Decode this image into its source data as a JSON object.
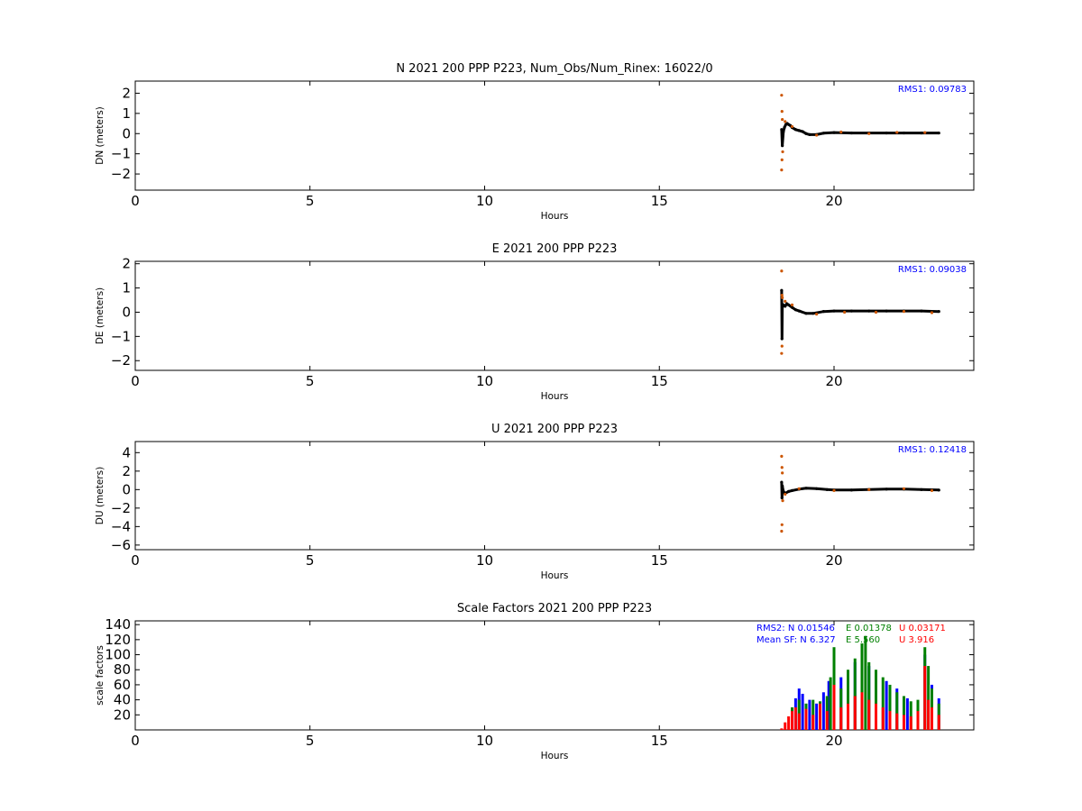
{
  "chart_data": [
    {
      "type": "scatter",
      "title": "N 2021 200 PPP  P223, Num_Obs/Num_Rinex: 16022/0",
      "xlabel": "Hours",
      "ylabel": "DN (meters)",
      "xlim": [
        0,
        24
      ],
      "ylim": [
        -2.8,
        2.6
      ],
      "xticks": [
        0,
        5,
        10,
        15,
        20
      ],
      "yticks": [
        -2,
        -1,
        0,
        1,
        2
      ],
      "annotation": "RMS1:  0.09783",
      "annotation_color": "#0000ff",
      "series": [
        {
          "color": "#000000",
          "x": [
            18.5,
            18.52,
            18.55,
            18.58,
            18.62,
            18.66,
            18.7,
            18.75,
            18.8,
            18.9,
            19.0,
            19.1,
            19.2,
            19.3,
            19.5,
            19.7,
            20.0,
            20.5,
            21.0,
            21.5,
            22.0,
            22.5,
            23.0
          ],
          "y": [
            0.2,
            -0.6,
            0.1,
            0.3,
            0.45,
            0.5,
            0.45,
            0.4,
            0.3,
            0.2,
            0.15,
            0.1,
            0.0,
            -0.05,
            -0.05,
            0.02,
            0.05,
            0.03,
            0.03,
            0.03,
            0.03,
            0.03,
            0.03
          ]
        },
        {
          "color": "#cc5500",
          "x": [
            18.5,
            18.5,
            18.51,
            18.51,
            18.52,
            18.53,
            18.6,
            18.8,
            19.5,
            20.2,
            21.0,
            21.8,
            22.6
          ],
          "y": [
            1.9,
            -1.8,
            1.1,
            -1.3,
            0.7,
            -0.9,
            0.6,
            0.35,
            -0.08,
            0.08,
            0.0,
            0.06,
            0.05
          ]
        }
      ]
    },
    {
      "type": "scatter",
      "title": "E 2021 200 PPP  P223",
      "xlabel": "Hours",
      "ylabel": "DE (meters)",
      "xlim": [
        0,
        24
      ],
      "ylim": [
        -2.4,
        2.1
      ],
      "xticks": [
        0,
        5,
        10,
        15,
        20
      ],
      "yticks": [
        -2,
        -1,
        0,
        1,
        2
      ],
      "annotation": "RMS1:  0.09038",
      "annotation_color": "#0000ff",
      "series": [
        {
          "color": "#000000",
          "x": [
            18.5,
            18.51,
            18.52,
            18.55,
            18.6,
            18.65,
            18.7,
            18.8,
            18.9,
            19.0,
            19.2,
            19.4,
            19.7,
            20.0,
            20.5,
            21.0,
            21.5,
            22.0,
            22.5,
            23.0
          ],
          "y": [
            0.9,
            -1.1,
            0.2,
            0.3,
            0.25,
            0.35,
            0.3,
            0.2,
            0.1,
            0.05,
            -0.05,
            -0.05,
            0.03,
            0.05,
            0.05,
            0.05,
            0.05,
            0.05,
            0.05,
            0.03
          ]
        },
        {
          "color": "#cc5500",
          "x": [
            18.5,
            18.5,
            18.51,
            18.51,
            18.52,
            18.6,
            18.8,
            19.5,
            20.3,
            21.2,
            22.0,
            22.8
          ],
          "y": [
            1.7,
            -1.7,
            0.7,
            -1.4,
            0.6,
            0.45,
            0.3,
            -0.08,
            0.0,
            0.0,
            0.03,
            -0.02
          ]
        }
      ]
    },
    {
      "type": "scatter",
      "title": "U 2021 200 PPP  P223",
      "xlabel": "Hours",
      "ylabel": "DU (meters)",
      "xlim": [
        0,
        24
      ],
      "ylim": [
        -6.5,
        5.2
      ],
      "xticks": [
        0,
        5,
        10,
        15,
        20
      ],
      "yticks": [
        -6,
        -4,
        -2,
        0,
        2,
        4
      ],
      "annotation": "RMS1:  0.12418",
      "annotation_color": "#0000ff",
      "series": [
        {
          "color": "#000000",
          "x": [
            18.5,
            18.51,
            18.52,
            18.55,
            18.6,
            18.7,
            18.8,
            19.0,
            19.2,
            19.5,
            19.8,
            20.0,
            20.5,
            21.0,
            21.5,
            22.0,
            22.5,
            23.0
          ],
          "y": [
            0.8,
            -0.9,
            0.4,
            -0.2,
            -0.4,
            -0.2,
            -0.1,
            0.05,
            0.15,
            0.1,
            0.0,
            -0.05,
            -0.05,
            0.0,
            0.05,
            0.05,
            0.0,
            -0.05
          ]
        },
        {
          "color": "#cc5500",
          "x": [
            18.5,
            18.5,
            18.51,
            18.51,
            18.52,
            18.53,
            18.6,
            19.0,
            20.0,
            21.0,
            22.0,
            22.8
          ],
          "y": [
            3.6,
            -4.5,
            2.4,
            -3.8,
            1.8,
            -1.2,
            -0.5,
            0.1,
            -0.1,
            0.0,
            0.1,
            -0.1
          ]
        }
      ]
    },
    {
      "type": "scatter",
      "title": "Scale Factors 2021 200 PPP  P223",
      "xlabel": "Hours",
      "ylabel": "scale factors",
      "xlim": [
        0,
        24
      ],
      "ylim": [
        0,
        145
      ],
      "xticks": [
        0,
        5,
        10,
        15,
        20
      ],
      "yticks": [
        20,
        40,
        60,
        80,
        100,
        120,
        140
      ],
      "annotations": [
        {
          "text": "RMS2: N  0.01546",
          "color": "#0000ff"
        },
        {
          "text": "E  0.01378",
          "color": "#008000"
        },
        {
          "text": "U  0.03171",
          "color": "#ff0000"
        },
        {
          "text": "Mean SF: N   6.327",
          "color": "#0000ff"
        },
        {
          "text": "E   5.560",
          "color": "#008000"
        },
        {
          "text": "U   3.916",
          "color": "#ff0000"
        }
      ],
      "series": [
        {
          "color": "#0000ff",
          "x": [
            18.9,
            19.0,
            19.1,
            19.3,
            19.5,
            19.7,
            19.85,
            20.0,
            20.2,
            20.4,
            20.6,
            20.8,
            21.0,
            21.2,
            21.5,
            21.8,
            22.1,
            22.4,
            22.6,
            22.8,
            23.0
          ],
          "y": [
            42,
            55,
            48,
            40,
            35,
            50,
            65,
            95,
            70,
            75,
            90,
            100,
            85,
            75,
            65,
            55,
            42,
            38,
            100,
            60,
            42
          ]
        },
        {
          "color": "#008000",
          "x": [
            18.8,
            19.0,
            19.2,
            19.4,
            19.6,
            19.8,
            19.9,
            20.0,
            20.2,
            20.4,
            20.6,
            20.8,
            20.9,
            21.0,
            21.2,
            21.4,
            21.6,
            21.8,
            22.0,
            22.2,
            22.4,
            22.6,
            22.7,
            22.8,
            23.0
          ],
          "y": [
            30,
            40,
            35,
            40,
            38,
            45,
            70,
            110,
            55,
            80,
            95,
            115,
            125,
            90,
            80,
            70,
            60,
            50,
            45,
            38,
            40,
            110,
            85,
            55,
            35
          ]
        },
        {
          "color": "#ff0000",
          "x": [
            18.5,
            18.6,
            18.7,
            18.8,
            18.9,
            19.0,
            19.2,
            19.4,
            19.6,
            19.8,
            20.0,
            20.2,
            20.4,
            20.6,
            20.8,
            21.0,
            21.2,
            21.4,
            21.6,
            21.8,
            22.0,
            22.2,
            22.4,
            22.6,
            22.7,
            22.8,
            23.0
          ],
          "y": [
            2,
            10,
            18,
            25,
            30,
            22,
            28,
            20,
            35,
            25,
            60,
            30,
            35,
            45,
            50,
            40,
            35,
            30,
            25,
            22,
            20,
            18,
            25,
            85,
            40,
            30,
            20
          ]
        }
      ]
    }
  ]
}
